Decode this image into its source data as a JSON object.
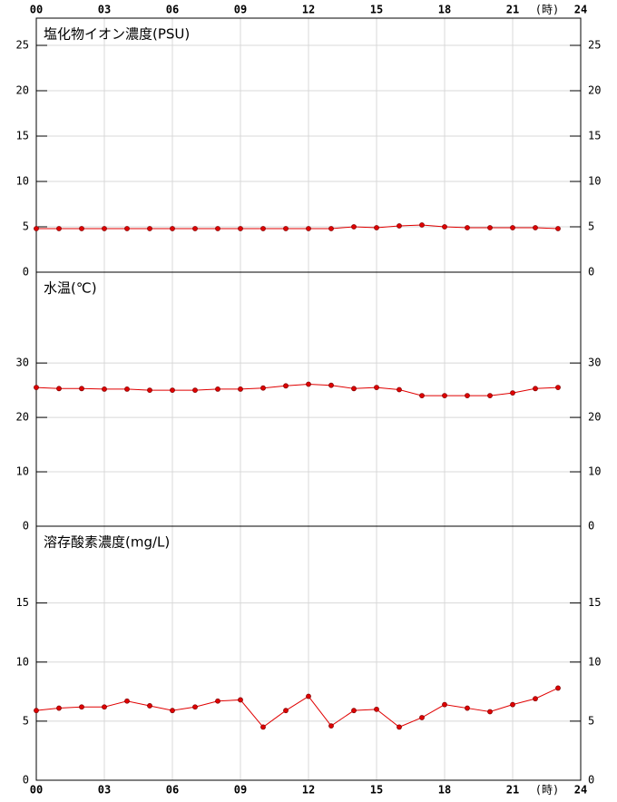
{
  "chart_data": [
    {
      "type": "line",
      "title": "塩化物イオン濃度(PSU)",
      "x": [
        0,
        1,
        2,
        3,
        4,
        5,
        6,
        7,
        8,
        9,
        10,
        11,
        12,
        13,
        14,
        15,
        16,
        17,
        18,
        19,
        20,
        21,
        22,
        23
      ],
      "xlim": [
        0,
        24
      ],
      "xticks": [
        {
          "value": 0,
          "label": "00"
        },
        {
          "value": 3,
          "label": "03"
        },
        {
          "value": 6,
          "label": "06"
        },
        {
          "value": 9,
          "label": "09"
        },
        12,
        15,
        18,
        21,
        24
      ],
      "x_unit": "(時)",
      "ylim": [
        0,
        28
      ],
      "yticks": [
        0,
        5,
        10,
        15,
        20,
        25
      ],
      "color": "#e00000",
      "values": [
        4.8,
        4.8,
        4.8,
        4.8,
        4.8,
        4.8,
        4.8,
        4.8,
        4.8,
        4.8,
        4.8,
        4.8,
        4.8,
        4.8,
        5.0,
        4.9,
        5.1,
        5.2,
        5.0,
        4.9,
        4.9,
        4.9,
        4.9,
        4.8
      ]
    },
    {
      "type": "line",
      "title": "水温(℃)",
      "x": [
        0,
        1,
        2,
        3,
        4,
        5,
        6,
        7,
        8,
        9,
        10,
        11,
        12,
        13,
        14,
        15,
        16,
        17,
        18,
        19,
        20,
        21,
        22,
        23
      ],
      "xlim": [
        0,
        24
      ],
      "ylim": [
        0,
        46.7
      ],
      "yticks": [
        0,
        10,
        20,
        30
      ],
      "color": "#e00000",
      "values": [
        25.5,
        25.3,
        25.3,
        25.2,
        25.2,
        25.0,
        25.0,
        25.0,
        25.2,
        25.2,
        25.4,
        25.8,
        26.1,
        25.9,
        25.3,
        25.5,
        25.1,
        24.0,
        24.0,
        24.0,
        24.0,
        24.5,
        25.3,
        25.5
      ]
    },
    {
      "type": "line",
      "title": "溶存酸素濃度(mg/L)",
      "x": [
        0,
        1,
        2,
        3,
        4,
        5,
        6,
        7,
        8,
        9,
        10,
        11,
        12,
        13,
        14,
        15,
        16,
        17,
        18,
        19,
        20,
        21,
        22,
        23
      ],
      "xlim": [
        0,
        24
      ],
      "xticks": [
        {
          "value": 0,
          "label": "00"
        },
        {
          "value": 3,
          "label": "03"
        },
        {
          "value": 6,
          "label": "06"
        },
        {
          "value": 9,
          "label": "09"
        },
        12,
        15,
        18,
        21,
        24
      ],
      "x_unit": "(時)",
      "ylim": [
        0,
        21.5
      ],
      "yticks": [
        0,
        5,
        10,
        15
      ],
      "color": "#e00000",
      "values": [
        5.9,
        6.1,
        6.2,
        6.2,
        6.7,
        6.3,
        5.9,
        6.2,
        6.7,
        6.8,
        4.5,
        5.9,
        7.1,
        4.6,
        5.9,
        6.0,
        4.5,
        5.3,
        6.4,
        6.1,
        5.8,
        6.4,
        6.9,
        7.8
      ]
    }
  ]
}
